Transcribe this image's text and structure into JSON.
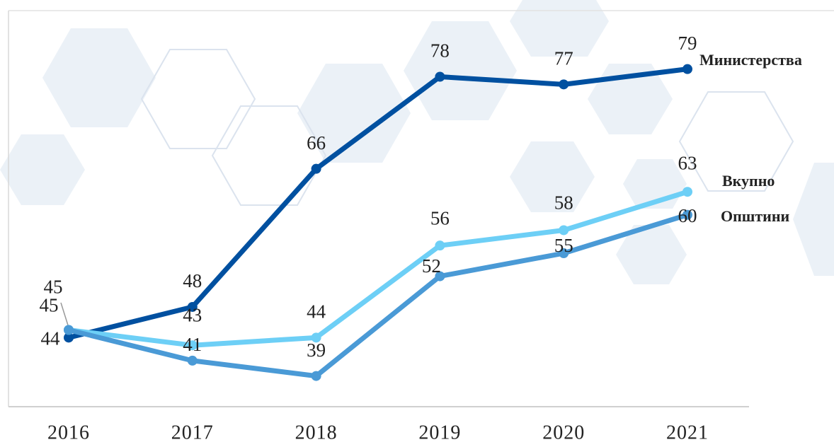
{
  "chart_data": {
    "type": "line",
    "x": [
      "2016",
      "2017",
      "2018",
      "2019",
      "2020",
      "2021"
    ],
    "series": [
      {
        "name": "Министерства",
        "color": "#0050a0",
        "values": [
          44,
          48,
          66,
          78,
          77,
          79
        ]
      },
      {
        "name": "Вкупно",
        "color": "#6dcff6",
        "values": [
          45,
          43,
          44,
          56,
          58,
          63
        ]
      },
      {
        "name": "Општини",
        "color": "#4a9ad6",
        "values": [
          45,
          41,
          39,
          52,
          55,
          60
        ]
      }
    ],
    "ylim": [
      35,
      88
    ]
  }
}
